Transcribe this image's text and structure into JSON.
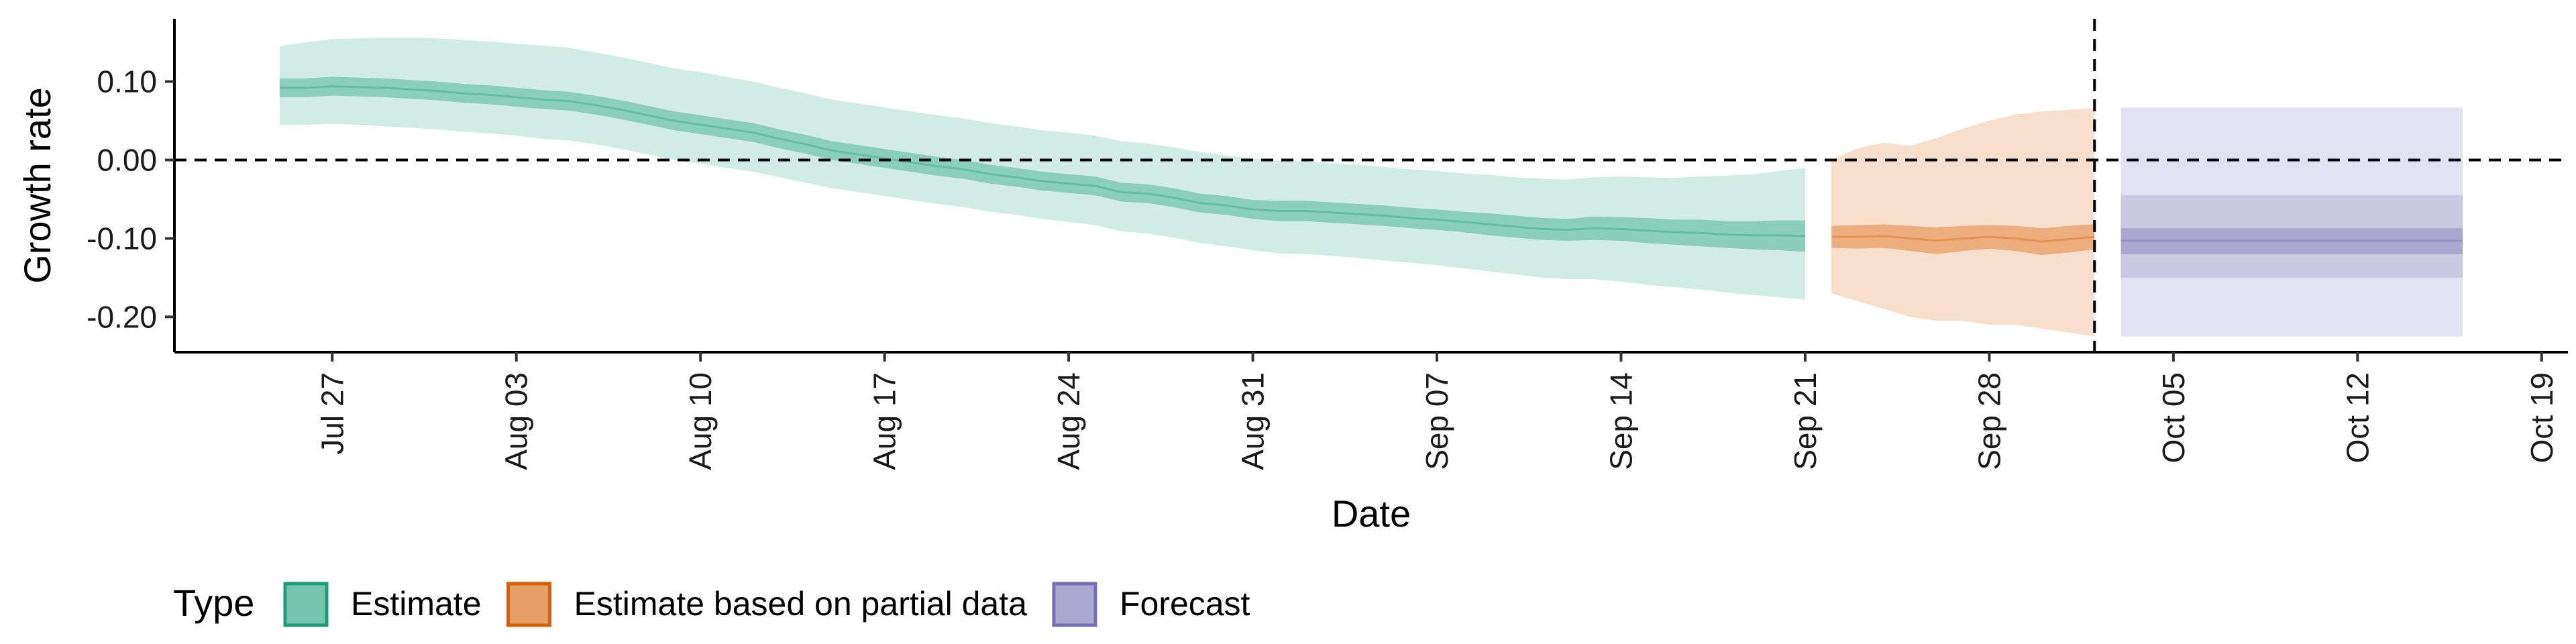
{
  "chart_data": {
    "type": "area",
    "xlabel": "Date",
    "ylabel": "Growth rate",
    "x_ticks": [
      "2020-07-27",
      "2020-08-03",
      "2020-08-10",
      "2020-08-17",
      "2020-08-24",
      "2020-08-31",
      "2020-09-07",
      "2020-09-14",
      "2020-09-21",
      "2020-09-28",
      "2020-10-05",
      "2020-10-12",
      "2020-10-19"
    ],
    "x_tick_labels": [
      "Jul 27",
      "Aug 03",
      "Aug 10",
      "Aug 17",
      "Aug 24",
      "Aug 31",
      "Sep 07",
      "Sep 14",
      "Sep 21",
      "Sep 28",
      "Oct 05",
      "Oct 12",
      "Oct 19"
    ],
    "xlim": [
      "2020-07-21",
      "2020-10-20"
    ],
    "y_ticks": [
      0.1,
      0.0,
      -0.1,
      -0.2
    ],
    "y_tick_labels": [
      "0.10",
      "0.00",
      "-0.10",
      "-0.20"
    ],
    "ylim": [
      -0.245,
      0.18
    ],
    "reference_lines": {
      "horizontal_y": 0.0,
      "vertical_x": "2020-10-02",
      "style": "dashed"
    },
    "grid": false,
    "legend": {
      "title": "Type",
      "position": "bottom-left",
      "entries": [
        {
          "label": "Estimate",
          "color": "#1b9e77"
        },
        {
          "label": "Estimate based on partial data",
          "color": "#d95f02"
        },
        {
          "label": "Forecast",
          "color": "#7570b3"
        }
      ]
    },
    "series": [
      {
        "name": "Estimate",
        "color": "#1b9e77",
        "x": [
          "2020-07-25",
          "2020-07-26",
          "2020-07-27",
          "2020-07-28",
          "2020-07-29",
          "2020-07-30",
          "2020-07-31",
          "2020-08-01",
          "2020-08-02",
          "2020-08-03",
          "2020-08-04",
          "2020-08-05",
          "2020-08-06",
          "2020-08-07",
          "2020-08-08",
          "2020-08-09",
          "2020-08-10",
          "2020-08-11",
          "2020-08-12",
          "2020-08-13",
          "2020-08-14",
          "2020-08-15",
          "2020-08-16",
          "2020-08-17",
          "2020-08-18",
          "2020-08-19",
          "2020-08-20",
          "2020-08-21",
          "2020-08-22",
          "2020-08-23",
          "2020-08-24",
          "2020-08-25",
          "2020-08-26",
          "2020-08-27",
          "2020-08-28",
          "2020-08-29",
          "2020-08-30",
          "2020-08-31",
          "2020-09-01",
          "2020-09-02",
          "2020-09-03",
          "2020-09-04",
          "2020-09-05",
          "2020-09-06",
          "2020-09-07",
          "2020-09-08",
          "2020-09-09",
          "2020-09-10",
          "2020-09-11",
          "2020-09-12",
          "2020-09-13",
          "2020-09-14",
          "2020-09-15",
          "2020-09-16",
          "2020-09-17",
          "2020-09-18",
          "2020-09-19",
          "2020-09-20",
          "2020-09-21"
        ],
        "median": [
          0.092,
          0.092,
          0.094,
          0.093,
          0.092,
          0.09,
          0.088,
          0.085,
          0.083,
          0.08,
          0.077,
          0.075,
          0.07,
          0.064,
          0.057,
          0.05,
          0.045,
          0.04,
          0.035,
          0.027,
          0.02,
          0.012,
          0.007,
          0.002,
          -0.003,
          -0.008,
          -0.012,
          -0.018,
          -0.022,
          -0.027,
          -0.03,
          -0.033,
          -0.041,
          -0.043,
          -0.048,
          -0.055,
          -0.058,
          -0.063,
          -0.065,
          -0.065,
          -0.067,
          -0.069,
          -0.071,
          -0.074,
          -0.076,
          -0.079,
          -0.082,
          -0.085,
          -0.088,
          -0.089,
          -0.087,
          -0.088,
          -0.09,
          -0.092,
          -0.093,
          -0.095,
          -0.096,
          -0.096,
          -0.097
        ],
        "lower_20": [
          0.08,
          0.08,
          0.082,
          0.081,
          0.08,
          0.078,
          0.076,
          0.073,
          0.071,
          0.068,
          0.065,
          0.063,
          0.058,
          0.052,
          0.045,
          0.038,
          0.033,
          0.028,
          0.023,
          0.015,
          0.008,
          0.0,
          -0.005,
          -0.01,
          -0.015,
          -0.02,
          -0.024,
          -0.03,
          -0.034,
          -0.039,
          -0.042,
          -0.045,
          -0.053,
          -0.055,
          -0.06,
          -0.067,
          -0.07,
          -0.075,
          -0.078,
          -0.078,
          -0.08,
          -0.082,
          -0.084,
          -0.087,
          -0.089,
          -0.092,
          -0.096,
          -0.099,
          -0.102,
          -0.103,
          -0.102,
          -0.103,
          -0.106,
          -0.108,
          -0.11,
          -0.112,
          -0.114,
          -0.115,
          -0.117
        ],
        "upper_20": [
          0.104,
          0.104,
          0.106,
          0.105,
          0.104,
          0.102,
          0.1,
          0.097,
          0.095,
          0.092,
          0.089,
          0.087,
          0.082,
          0.076,
          0.069,
          0.062,
          0.057,
          0.052,
          0.047,
          0.039,
          0.032,
          0.024,
          0.019,
          0.014,
          0.009,
          0.004,
          0.0,
          -0.006,
          -0.01,
          -0.015,
          -0.018,
          -0.021,
          -0.029,
          -0.031,
          -0.036,
          -0.043,
          -0.046,
          -0.051,
          -0.052,
          -0.052,
          -0.054,
          -0.056,
          -0.058,
          -0.061,
          -0.063,
          -0.066,
          -0.068,
          -0.071,
          -0.074,
          -0.075,
          -0.072,
          -0.073,
          -0.074,
          -0.076,
          -0.076,
          -0.078,
          -0.078,
          -0.077,
          -0.077
        ],
        "lower_90": [
          0.045,
          0.045,
          0.046,
          0.045,
          0.043,
          0.041,
          0.039,
          0.036,
          0.034,
          0.031,
          0.027,
          0.025,
          0.02,
          0.014,
          0.007,
          0.0,
          -0.005,
          -0.01,
          -0.015,
          -0.022,
          -0.029,
          -0.036,
          -0.041,
          -0.046,
          -0.051,
          -0.056,
          -0.06,
          -0.066,
          -0.07,
          -0.075,
          -0.079,
          -0.083,
          -0.091,
          -0.094,
          -0.099,
          -0.106,
          -0.11,
          -0.115,
          -0.119,
          -0.12,
          -0.122,
          -0.125,
          -0.128,
          -0.131,
          -0.134,
          -0.138,
          -0.142,
          -0.146,
          -0.15,
          -0.152,
          -0.152,
          -0.155,
          -0.159,
          -0.162,
          -0.165,
          -0.169,
          -0.172,
          -0.175,
          -0.178
        ],
        "upper_90": [
          0.145,
          0.15,
          0.154,
          0.155,
          0.156,
          0.156,
          0.155,
          0.153,
          0.151,
          0.148,
          0.146,
          0.143,
          0.137,
          0.131,
          0.124,
          0.117,
          0.112,
          0.106,
          0.1,
          0.092,
          0.085,
          0.077,
          0.072,
          0.067,
          0.062,
          0.057,
          0.053,
          0.047,
          0.043,
          0.038,
          0.035,
          0.031,
          0.024,
          0.021,
          0.016,
          0.01,
          0.006,
          0.002,
          -0.001,
          -0.002,
          -0.004,
          -0.006,
          -0.009,
          -0.012,
          -0.014,
          -0.017,
          -0.019,
          -0.022,
          -0.024,
          -0.025,
          -0.022,
          -0.021,
          -0.022,
          -0.023,
          -0.021,
          -0.02,
          -0.018,
          -0.014,
          -0.01
        ]
      },
      {
        "name": "Estimate based on partial data",
        "color": "#d95f02",
        "x": [
          "2020-09-22",
          "2020-09-23",
          "2020-09-24",
          "2020-09-25",
          "2020-09-26",
          "2020-09-27",
          "2020-09-28",
          "2020-09-29",
          "2020-09-30",
          "2020-10-01",
          "2020-10-02"
        ],
        "median": [
          -0.098,
          -0.098,
          -0.097,
          -0.1,
          -0.103,
          -0.1,
          -0.098,
          -0.1,
          -0.104,
          -0.101,
          -0.098
        ],
        "lower_20": [
          -0.112,
          -0.113,
          -0.112,
          -0.116,
          -0.12,
          -0.116,
          -0.113,
          -0.116,
          -0.121,
          -0.118,
          -0.114
        ],
        "upper_20": [
          -0.084,
          -0.083,
          -0.082,
          -0.084,
          -0.086,
          -0.084,
          -0.083,
          -0.084,
          -0.087,
          -0.084,
          -0.082
        ],
        "lower_90": [
          -0.17,
          -0.18,
          -0.19,
          -0.2,
          -0.205,
          -0.205,
          -0.21,
          -0.21,
          -0.215,
          -0.22,
          -0.225
        ],
        "upper_90": [
          0.0,
          0.015,
          0.022,
          0.018,
          0.028,
          0.04,
          0.05,
          0.058,
          0.062,
          0.064,
          0.066
        ]
      },
      {
        "name": "Forecast",
        "color": "#7570b3",
        "x": [
          "2020-10-03",
          "2020-10-04",
          "2020-10-05",
          "2020-10-06",
          "2020-10-07",
          "2020-10-08",
          "2020-10-09",
          "2020-10-10",
          "2020-10-11",
          "2020-10-12",
          "2020-10-13",
          "2020-10-14",
          "2020-10-15",
          "2020-10-16"
        ],
        "median": [
          -0.103,
          -0.103,
          -0.103,
          -0.103,
          -0.103,
          -0.103,
          -0.103,
          -0.103,
          -0.103,
          -0.103,
          -0.103,
          -0.103,
          -0.103,
          -0.103
        ],
        "lower_20": [
          -0.12,
          -0.12,
          -0.12,
          -0.12,
          -0.12,
          -0.12,
          -0.12,
          -0.12,
          -0.12,
          -0.12,
          -0.12,
          -0.12,
          -0.12,
          -0.12
        ],
        "upper_20": [
          -0.087,
          -0.087,
          -0.087,
          -0.087,
          -0.087,
          -0.087,
          -0.087,
          -0.087,
          -0.087,
          -0.087,
          -0.087,
          -0.087,
          -0.087,
          -0.087
        ],
        "lower_50": [
          -0.15,
          -0.15,
          -0.15,
          -0.15,
          -0.15,
          -0.15,
          -0.15,
          -0.15,
          -0.15,
          -0.15,
          -0.15,
          -0.15,
          -0.15,
          -0.15
        ],
        "upper_50": [
          -0.045,
          -0.045,
          -0.045,
          -0.045,
          -0.045,
          -0.045,
          -0.045,
          -0.045,
          -0.045,
          -0.045,
          -0.045,
          -0.045,
          -0.045,
          -0.045
        ],
        "lower_90": [
          -0.225,
          -0.225,
          -0.225,
          -0.225,
          -0.225,
          -0.225,
          -0.225,
          -0.225,
          -0.225,
          -0.225,
          -0.225,
          -0.225,
          -0.225,
          -0.225
        ],
        "upper_90": [
          0.067,
          0.067,
          0.067,
          0.067,
          0.067,
          0.067,
          0.067,
          0.067,
          0.067,
          0.067,
          0.067,
          0.067,
          0.067,
          0.067
        ]
      }
    ]
  }
}
